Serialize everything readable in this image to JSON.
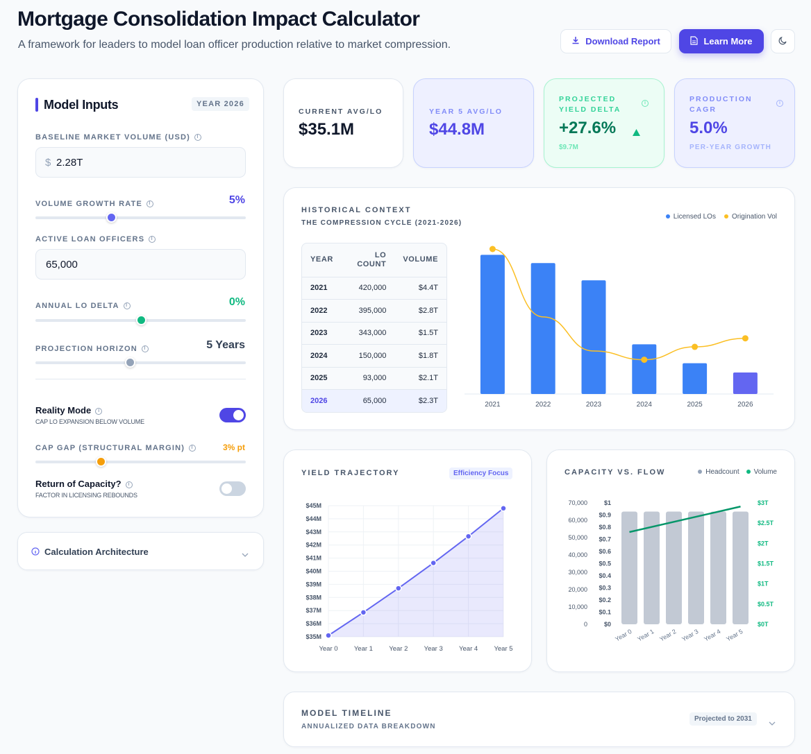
{
  "header": {
    "title": "Mortgage Consolidation Impact Calculator",
    "subtitle": "A framework for leaders to model loan officer production relative to market compression.",
    "download_label": "Download Report",
    "learn_label": "Learn More"
  },
  "inputs": {
    "title": "Model Inputs",
    "year_badge": "YEAR 2026",
    "baseline_label": "BASELINE MARKET VOLUME (USD)",
    "currency_symbol": "$",
    "baseline_value": "2.28T",
    "growth_label": "VOLUME GROWTH RATE",
    "growth_value": "5%",
    "growth_fraction": 0.36,
    "active_label": "ACTIVE LOAN OFFICERS",
    "active_value": "65,000",
    "delta_label": "ANNUAL LO DELTA",
    "delta_value": "0%",
    "delta_fraction": 0.5,
    "horizon_label": "PROJECTION HORIZON",
    "horizon_value": "5 Years",
    "horizon_fraction": 0.45,
    "reality_label": "Reality Mode",
    "reality_sub": "CAP LO EXPANSION BELOW VOLUME",
    "reality_on": true,
    "cap_label": "CAP GAP (STRUCTURAL MARGIN)",
    "cap_value": "3% pt",
    "cap_fraction": 0.31,
    "return_label": "Return of Capacity?",
    "return_sub": "FACTOR IN LICENSING REBOUNDS",
    "return_on": false
  },
  "architecture": {
    "label": "Calculation Architecture"
  },
  "kpis": [
    {
      "label": "CURRENT AVG/LO",
      "value": "$35.1M",
      "sub": ""
    },
    {
      "label": "YEAR 5 AVG/LO",
      "value": "$44.8M",
      "sub": ""
    },
    {
      "label": "PROJECTED YIELD DELTA",
      "value": "+27.6%",
      "sub": "$9.7M"
    },
    {
      "label": "PRODUCTION CAGR",
      "value": "5.0%",
      "sub": "PER-YEAR GROWTH"
    }
  ],
  "historical": {
    "title": "HISTORICAL CONTEXT",
    "subtitle": "THE COMPRESSION CYCLE (2021-2026)",
    "legend_los": "Licensed LOs",
    "legend_vol": "Origination Vol",
    "col_year": "YEAR",
    "col_count": "LO COUNT",
    "col_volume": "VOLUME",
    "rows": [
      {
        "year": "2021",
        "count": "420,000",
        "volume": "$4.4T"
      },
      {
        "year": "2022",
        "count": "395,000",
        "volume": "$2.8T"
      },
      {
        "year": "2023",
        "count": "343,000",
        "volume": "$1.5T"
      },
      {
        "year": "2024",
        "count": "150,000",
        "volume": "$1.8T"
      },
      {
        "year": "2025",
        "count": "93,000",
        "volume": "$2.1T"
      },
      {
        "year": "2026",
        "count": "65,000",
        "volume": "$2.3T"
      }
    ]
  },
  "yield": {
    "title": "YIELD TRAJECTORY",
    "badge": "Efficiency Focus"
  },
  "capacity": {
    "title": "CAPACITY VS. FLOW",
    "legend_head": "Headcount",
    "legend_vol": "Volume"
  },
  "timeline": {
    "title": "MODEL TIMELINE",
    "subtitle": "ANNUALIZED DATA BREAKDOWN",
    "badge": "Projected to 2031"
  },
  "colors": {
    "indigo": "#4f46e5",
    "blue": "#3b82f6",
    "amber": "#fbbf24",
    "green": "#10b981",
    "slate": "#94a3b8"
  },
  "chart_data": [
    {
      "type": "bar",
      "title": "HISTORICAL CONTEXT",
      "categories": [
        "2021",
        "2022",
        "2023",
        "2024",
        "2025",
        "2026"
      ],
      "series": [
        {
          "name": "Licensed LOs",
          "values": [
            420000,
            395000,
            343000,
            150000,
            93000,
            65000
          ]
        },
        {
          "name": "Origination Vol",
          "values": [
            4.4,
            2.8,
            1.5,
            1.8,
            2.1,
            2.3
          ]
        }
      ]
    },
    {
      "type": "area",
      "title": "YIELD TRAJECTORY",
      "x": [
        "Year 0",
        "Year 1",
        "Year 2",
        "Year 3",
        "Year 4",
        "Year 5"
      ],
      "values": [
        35.1,
        36.86,
        38.7,
        40.63,
        42.66,
        44.8
      ],
      "ylim": [
        35,
        45
      ],
      "yticks": [
        "$35M",
        "$36M",
        "$37M",
        "$38M",
        "$39M",
        "$40M",
        "$41M",
        "$42M",
        "$43M",
        "$44M",
        "$45M"
      ]
    },
    {
      "type": "bar",
      "title": "CAPACITY VS. FLOW",
      "x": [
        "Year 0",
        "Year 1",
        "Year 2",
        "Year 3",
        "Year 4",
        "Year 5"
      ],
      "series": [
        {
          "name": "Headcount",
          "values": [
            65000,
            65000,
            65000,
            65000,
            65000,
            65000
          ]
        },
        {
          "name": "Volume",
          "values": [
            2.28,
            2.39,
            2.51,
            2.64,
            2.77,
            2.91
          ]
        }
      ],
      "y_left_ticks": [
        "0",
        "10,000",
        "20,000",
        "30,000",
        "40,000",
        "50,000",
        "60,000",
        "70,000"
      ],
      "y_mid_ticks": [
        "$0",
        "$0.1",
        "$0.2",
        "$0.3",
        "$0.4",
        "$0.5",
        "$0.6",
        "$0.7",
        "$0.8",
        "$0.9",
        "$1"
      ],
      "y_right_ticks": [
        "$0T",
        "$0.5T",
        "$1T",
        "$1.5T",
        "$2T",
        "$2.5T",
        "$3T"
      ],
      "ylim_left": [
        0,
        70000
      ],
      "ylim_right": [
        0,
        3
      ]
    }
  ]
}
